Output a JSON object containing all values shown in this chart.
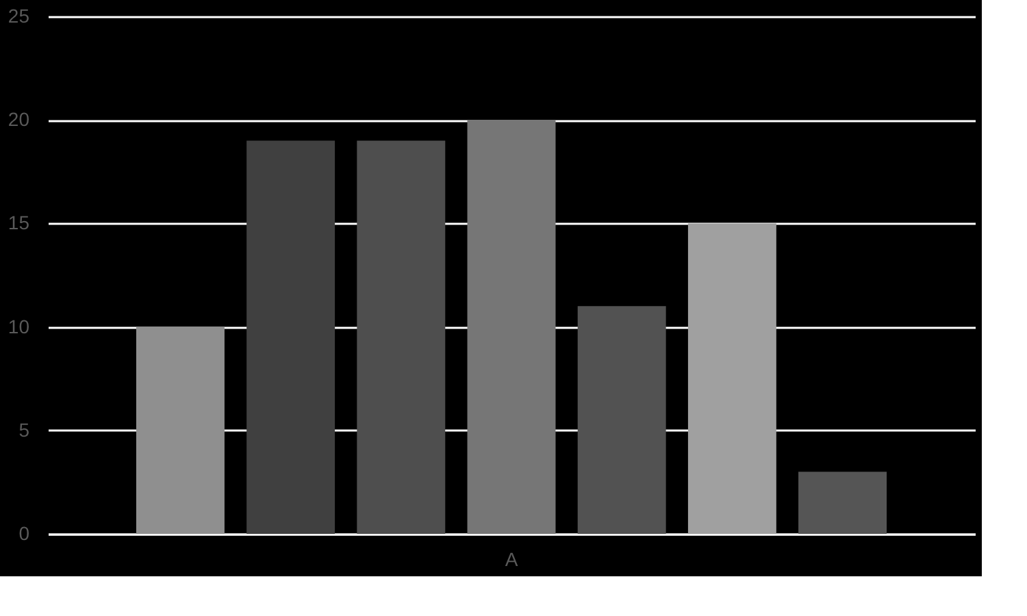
{
  "chart_data": {
    "type": "bar",
    "categories": [
      "A"
    ],
    "series": [
      {
        "color": "#8f8f8f",
        "values": [
          10
        ]
      },
      {
        "color": "#404040",
        "values": [
          19
        ]
      },
      {
        "color": "#4e4e4e",
        "values": [
          19
        ]
      },
      {
        "color": "#767676",
        "values": [
          20
        ]
      },
      {
        "color": "#525252",
        "values": [
          11
        ]
      },
      {
        "color": "#a0a0a0",
        "values": [
          15
        ]
      },
      {
        "color": "#555555",
        "values": [
          3
        ]
      }
    ],
    "ylim": [
      0,
      25
    ],
    "yticks": [
      0,
      5,
      10,
      15,
      20,
      25
    ],
    "grid": "y",
    "legend": false
  }
}
